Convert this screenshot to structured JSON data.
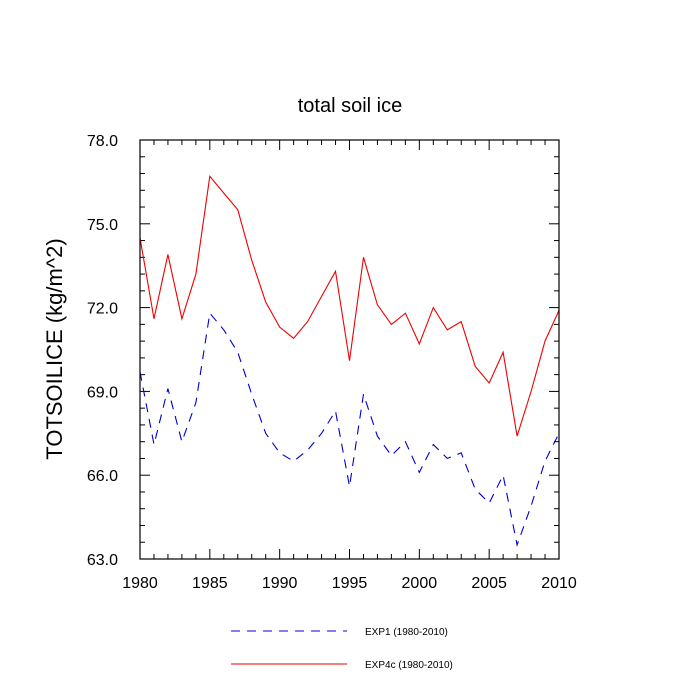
{
  "chart_data": {
    "type": "line",
    "title": "total soil ice",
    "ylabel": "TOTSOILICE  (kg/m^2)",
    "xlabel": "",
    "xlim": [
      1980,
      2010
    ],
    "ylim": [
      63.0,
      78.0
    ],
    "x_ticks": [
      1980,
      1985,
      1990,
      1995,
      2000,
      2005,
      2010
    ],
    "y_ticks": [
      63.0,
      66.0,
      69.0,
      72.0,
      75.0,
      78.0
    ],
    "x_tick_labels": [
      "1980",
      "1985",
      "1990",
      "1995",
      "2000",
      "2005",
      "2010"
    ],
    "y_tick_labels": [
      "63.0",
      "66.0",
      "69.0",
      "72.0",
      "75.0",
      "78.0"
    ],
    "legend_position": "bottom",
    "x": [
      1980,
      1981,
      1982,
      1983,
      1984,
      1985,
      1986,
      1987,
      1988,
      1989,
      1990,
      1991,
      1992,
      1993,
      1994,
      1995,
      1996,
      1997,
      1998,
      1999,
      2000,
      2001,
      2002,
      2003,
      2004,
      2005,
      2006,
      2007,
      2008,
      2009,
      2010
    ],
    "series": [
      {
        "name": "EXP1 (1980-2010)",
        "color": "#0000cc",
        "dash": "dashed",
        "values": [
          69.7,
          67.1,
          69.1,
          67.2,
          68.6,
          71.8,
          71.2,
          70.4,
          68.9,
          67.5,
          66.8,
          66.5,
          66.9,
          67.5,
          68.3,
          65.6,
          68.9,
          67.4,
          66.7,
          67.2,
          66.1,
          67.1,
          66.6,
          66.8,
          65.5,
          65.0,
          66.0,
          63.5,
          64.9,
          66.5,
          67.5
        ]
      },
      {
        "name": "EXP4c (1980-2010)",
        "color": "#ee0000",
        "dash": "solid",
        "values": [
          74.5,
          71.6,
          73.9,
          71.6,
          73.2,
          76.7,
          76.1,
          75.5,
          73.7,
          72.2,
          71.3,
          70.9,
          71.5,
          72.4,
          73.3,
          70.1,
          73.8,
          72.1,
          71.4,
          71.8,
          70.7,
          72.0,
          71.2,
          71.5,
          69.9,
          69.3,
          70.4,
          67.4,
          69.0,
          70.8,
          71.9
        ]
      }
    ]
  }
}
